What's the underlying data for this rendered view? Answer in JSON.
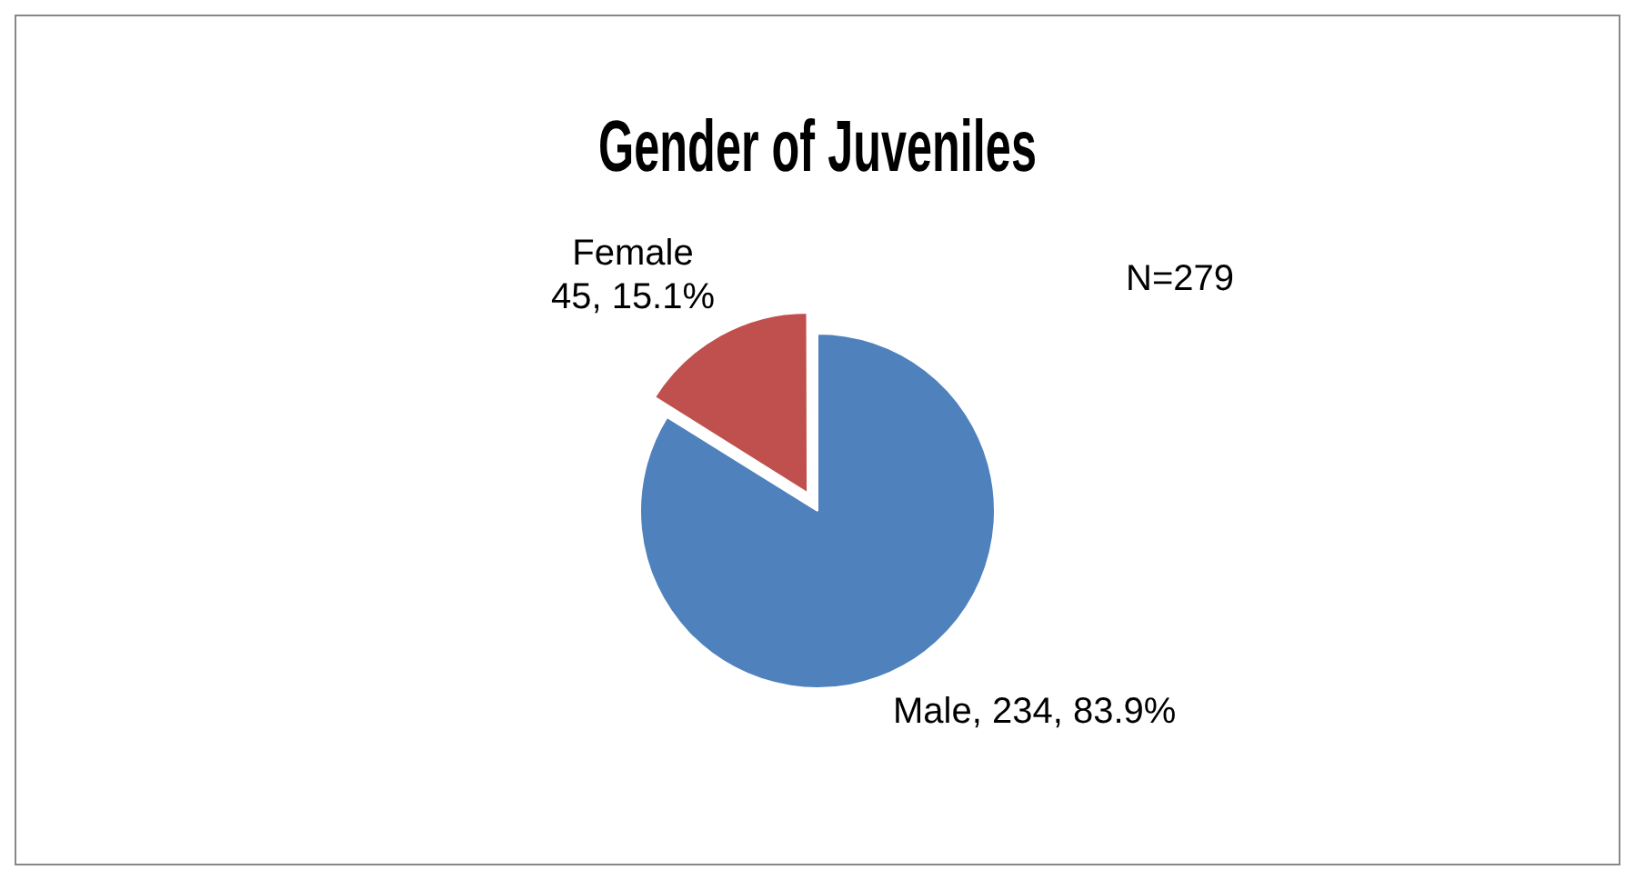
{
  "chart_data": {
    "type": "pie",
    "title": "Gender of Juveniles",
    "categories": [
      "Male",
      "Female"
    ],
    "values": [
      234,
      45
    ],
    "colors": [
      "#4f81bd",
      "#c0504d"
    ],
    "value_labels": [
      "234, 83.9%",
      "45, 15.1%"
    ],
    "annotations": [
      "N=279"
    ],
    "legend": false
  }
}
